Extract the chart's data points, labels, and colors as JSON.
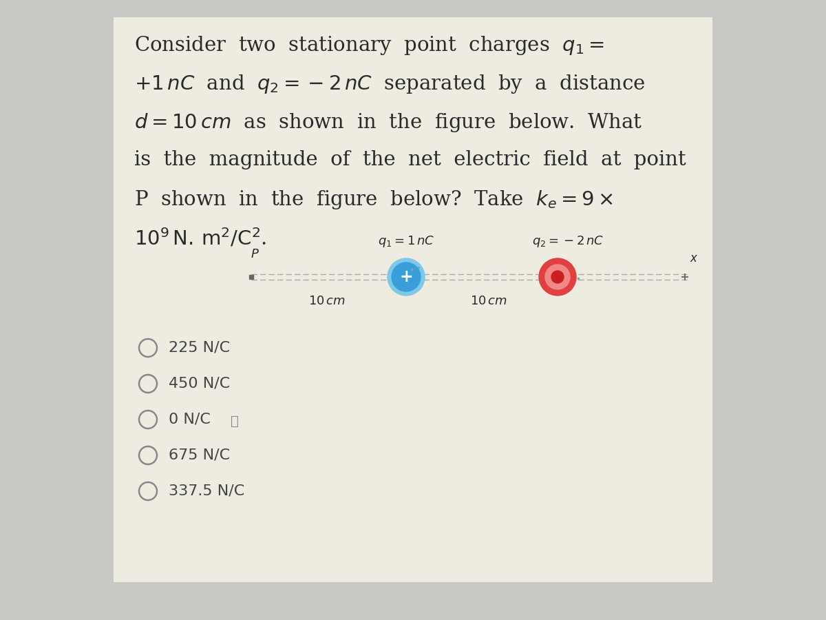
{
  "bg_color": "#c8c8c4",
  "panel_color": "#eeebe0",
  "text_color": "#2a2a2a",
  "choice_color": "#444444",
  "line_color": "#aaaaaa",
  "q1_color_outer": "#7ec8e8",
  "q1_color_inner": "#3a9ed8",
  "q2_color_outer": "#e04040",
  "q2_color_mid": "#f08888",
  "q2_color_center": "#c82020",
  "choices": [
    "225 N/C",
    "450 N/C",
    "0 N/C",
    "675 N/C",
    "337.5 N/C"
  ]
}
